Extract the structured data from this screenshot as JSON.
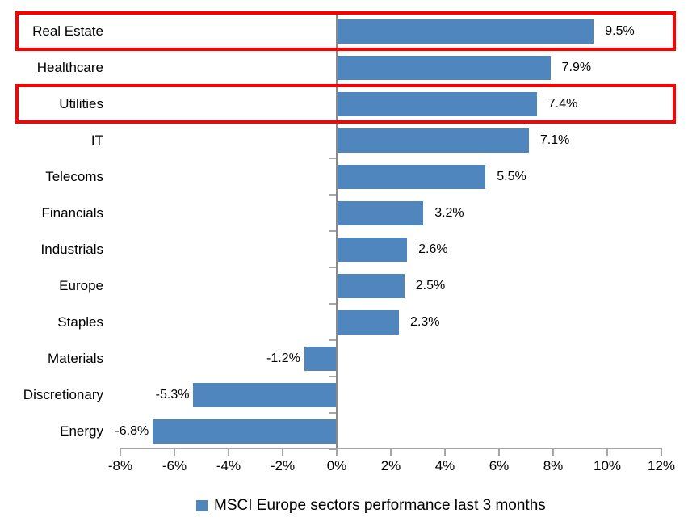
{
  "chart_data": {
    "type": "bar",
    "orientation": "horizontal",
    "title": "",
    "legend": "MSCI Europe sectors performance last 3 months",
    "legend_position": "bottom",
    "categories": [
      "Real Estate",
      "Healthcare",
      "Utilities",
      "IT",
      "Telecoms",
      "Financials",
      "Industrials",
      "Europe",
      "Staples",
      "Materials",
      "Discretionary",
      "Energy"
    ],
    "values": [
      9.5,
      7.9,
      7.4,
      7.1,
      5.5,
      3.2,
      2.6,
      2.5,
      2.3,
      -1.2,
      -5.3,
      -6.8
    ],
    "value_labels": [
      "9.5%",
      "7.9%",
      "7.4%",
      "7.1%",
      "5.5%",
      "3.2%",
      "2.6%",
      "2.5%",
      "2.3%",
      "-1.2%",
      "-5.3%",
      "-6.8%"
    ],
    "xlim": [
      -8,
      12
    ],
    "xtick_values": [
      -8,
      -6,
      -4,
      -2,
      0,
      2,
      4,
      6,
      8,
      10,
      12
    ],
    "xtick_labels": [
      "-8%",
      "-6%",
      "-4%",
      "-2%",
      "0%",
      "2%",
      "4%",
      "6%",
      "8%",
      "10%",
      "12%"
    ],
    "grid": false,
    "highlighted_categories": [
      "Real Estate",
      "Utilities"
    ],
    "colors": {
      "bar": "#4F86BD",
      "value_axis_line": "#A6A6A6",
      "category_axis_line": "#898989",
      "tick": "#A6A6A6",
      "highlight_border": "#FF0000",
      "text": "#000000"
    }
  }
}
